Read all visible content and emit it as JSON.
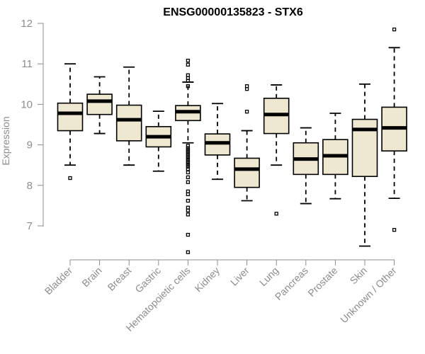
{
  "chart_data": {
    "type": "boxplot",
    "title": "ENSG00000135823 - STX6",
    "xlabel": "",
    "ylabel": "Expression",
    "ylim": [
      6.2,
      12.2
    ],
    "yticks": [
      "7",
      "8",
      "9",
      "10",
      "11",
      "12"
    ],
    "box_fill": "#efe8d0",
    "axis_color": "#8c8c8c",
    "categories": [
      "Bladder",
      "Brain",
      "Breast",
      "Gastric",
      "Hematopoietic cells",
      "Kidney",
      "Liver",
      "Lung",
      "Pancreas",
      "Prostate",
      "Skin",
      "Unknown / Other"
    ],
    "boxes": [
      {
        "name": "Bladder",
        "min": 8.5,
        "q1": 9.35,
        "median": 9.78,
        "q3": 10.03,
        "max": 11.0,
        "outliers": [
          8.18
        ]
      },
      {
        "name": "Brain",
        "min": 9.28,
        "q1": 9.75,
        "median": 10.08,
        "q3": 10.25,
        "max": 10.68,
        "outliers": []
      },
      {
        "name": "Breast",
        "min": 8.5,
        "q1": 9.1,
        "median": 9.62,
        "q3": 9.98,
        "max": 10.92,
        "outliers": []
      },
      {
        "name": "Gastric",
        "min": 8.35,
        "q1": 8.95,
        "median": 9.2,
        "q3": 9.45,
        "max": 9.83,
        "outliers": []
      },
      {
        "name": "Hematopoietic cells",
        "min": 9.05,
        "q1": 9.6,
        "median": 9.82,
        "q3": 9.97,
        "max": 10.55,
        "outliers": [
          11.08,
          10.98,
          10.72,
          10.65,
          10.58,
          10.45,
          8.98,
          8.92,
          8.88,
          8.85,
          8.82,
          8.78,
          8.74,
          8.7,
          8.66,
          8.62,
          8.58,
          8.54,
          8.5,
          8.46,
          8.4,
          8.32,
          8.2,
          8.08,
          7.85,
          7.78,
          7.62,
          7.45,
          7.38,
          7.28,
          6.78,
          6.35
        ]
      },
      {
        "name": "Kidney",
        "min": 8.15,
        "q1": 8.75,
        "median": 9.05,
        "q3": 9.27,
        "max": 10.02,
        "outliers": []
      },
      {
        "name": "Liver",
        "min": 7.62,
        "q1": 7.95,
        "median": 8.4,
        "q3": 8.67,
        "max": 9.35,
        "outliers": [
          10.45,
          10.38,
          9.82
        ]
      },
      {
        "name": "Lung",
        "min": 8.5,
        "q1": 9.28,
        "median": 9.75,
        "q3": 10.15,
        "max": 10.48,
        "outliers": [
          7.3
        ]
      },
      {
        "name": "Pancreas",
        "min": 7.55,
        "q1": 8.27,
        "median": 8.65,
        "q3": 9.05,
        "max": 9.42,
        "outliers": []
      },
      {
        "name": "Prostate",
        "min": 7.67,
        "q1": 8.27,
        "median": 8.73,
        "q3": 9.13,
        "max": 9.78,
        "outliers": []
      },
      {
        "name": "Skin",
        "min": 6.5,
        "q1": 8.22,
        "median": 9.38,
        "q3": 9.63,
        "max": 10.5,
        "outliers": []
      },
      {
        "name": "Unknown / Other",
        "min": 7.68,
        "q1": 8.85,
        "median": 9.42,
        "q3": 9.93,
        "max": 11.4,
        "outliers": [
          11.85,
          6.9
        ]
      }
    ]
  }
}
